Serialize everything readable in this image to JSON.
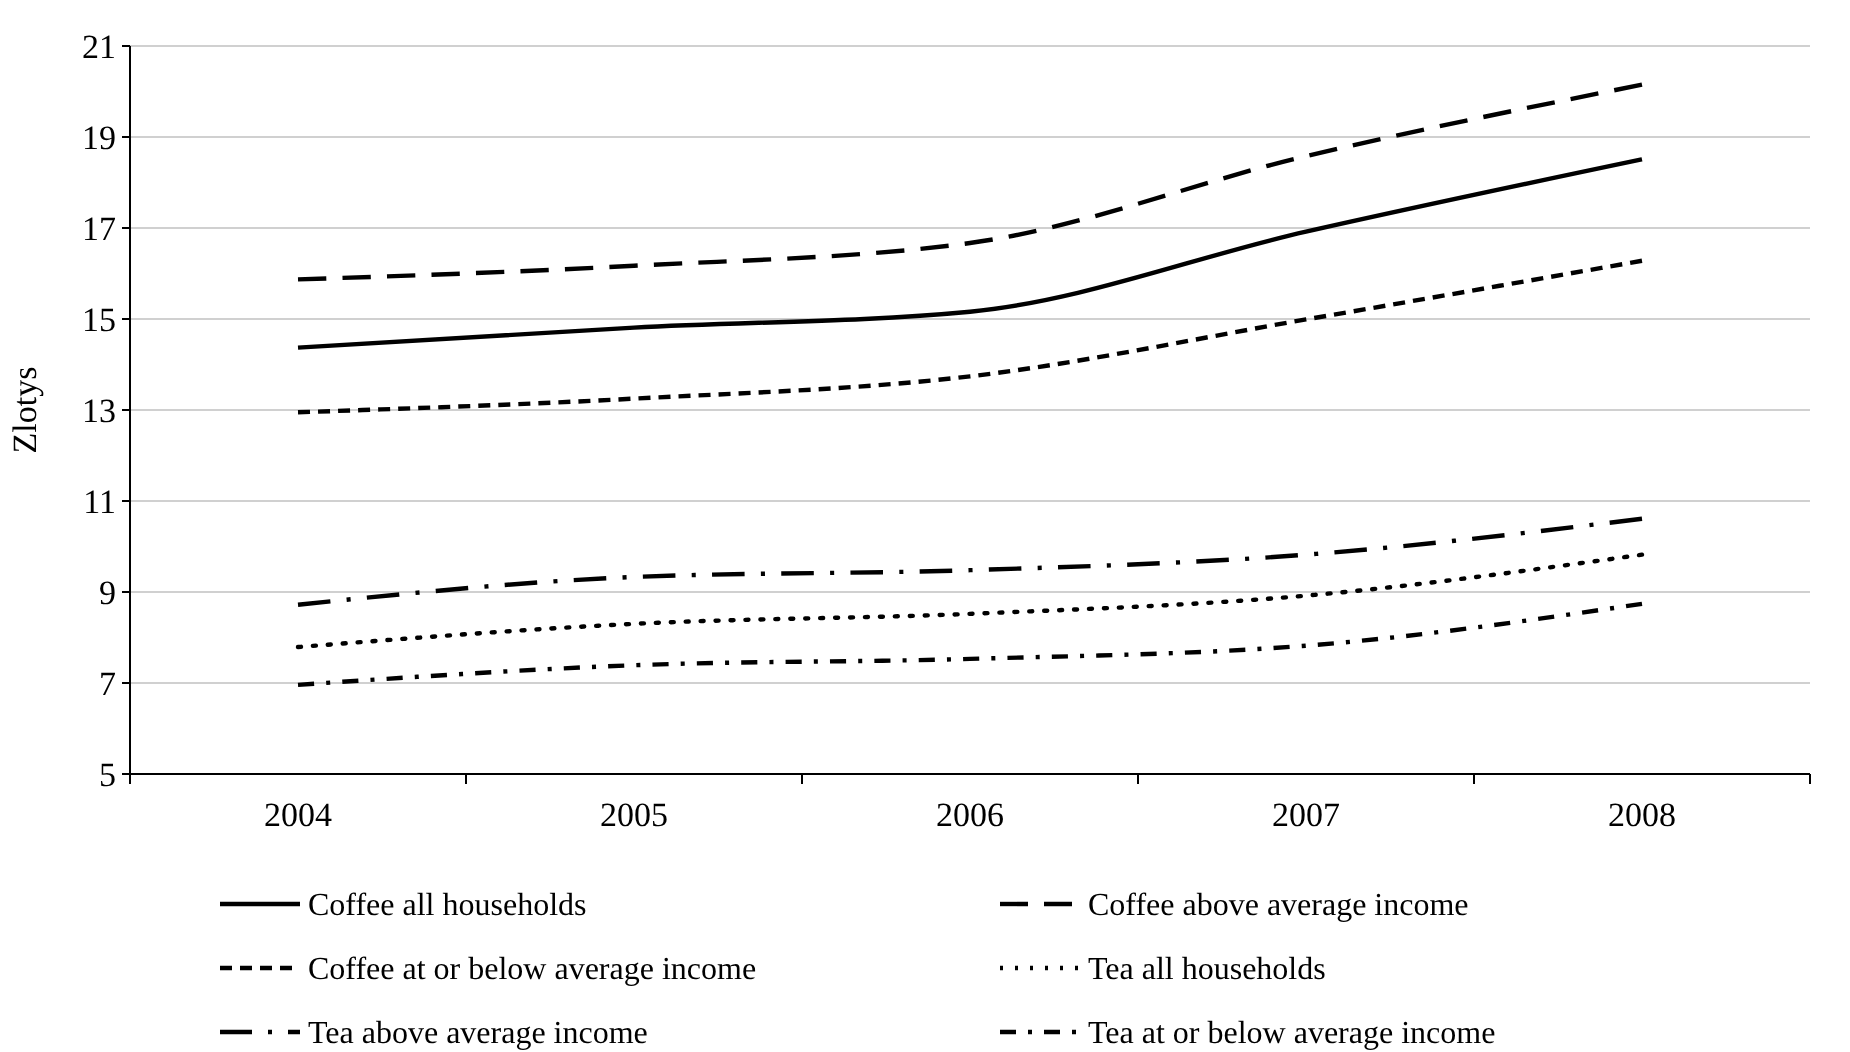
{
  "chart_data": {
    "type": "line",
    "ylabel": "Zlotys",
    "categories": [
      "2004",
      "2005",
      "2006",
      "2007",
      "2008"
    ],
    "ylim": [
      5,
      21
    ],
    "yticks": [
      5,
      7,
      9,
      11,
      13,
      15,
      17,
      19,
      21
    ],
    "grid": "y",
    "legend": "bottom",
    "marker": "none",
    "series": [
      {
        "name": "Coffee all households",
        "color": "#000000",
        "line_style": "solid",
        "values": [
          14.37,
          14.81,
          15.16,
          16.92,
          18.51
        ]
      },
      {
        "name": "Coffee above average income",
        "color": "#000000",
        "line_style": "long_dashed",
        "values": [
          15.87,
          16.17,
          16.67,
          18.58,
          20.15
        ]
      },
      {
        "name": "Coffee at or below average income",
        "color": "#000000",
        "line_style": "dashed",
        "values": [
          12.95,
          13.25,
          13.74,
          14.99,
          16.28
        ]
      },
      {
        "name": "Tea all households",
        "color": "#000000",
        "line_style": "dotted",
        "values": [
          7.79,
          8.3,
          8.52,
          8.92,
          9.82
        ]
      },
      {
        "name": "Tea above average income",
        "color": "#000000",
        "line_style": "long_dash_dot",
        "values": [
          8.72,
          9.33,
          9.48,
          9.82,
          10.61
        ]
      },
      {
        "name": "Tea at or below average income",
        "color": "#000000",
        "line_style": "dash_dot",
        "values": [
          6.96,
          7.39,
          7.53,
          7.82,
          8.74
        ]
      }
    ]
  }
}
